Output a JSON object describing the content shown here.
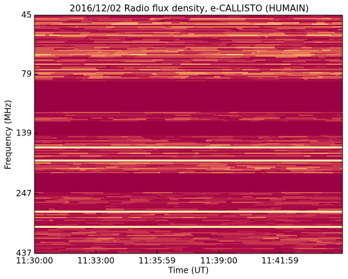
{
  "chart_data": {
    "type": "spectrogram",
    "title": "2016/12/02  Radio flux density, e-CALLISTO (HUMAIN)",
    "x_label": "Time (UT)",
    "y_label": "Frequency (MHz)",
    "xlim": [
      41400,
      42302
    ],
    "xticks": [
      {
        "value": 41400,
        "label": "11:30:00"
      },
      {
        "value": 41580,
        "label": "11:33:00"
      },
      {
        "value": 41759,
        "label": "11:35:59"
      },
      {
        "value": 41940,
        "label": "11:39:00"
      },
      {
        "value": 42119,
        "label": "11:41:59"
      }
    ],
    "ylim": [
      45,
      437
    ],
    "yticks": [
      45,
      79,
      139,
      247,
      437
    ],
    "y_log": true,
    "y_inverted": true
  }
}
